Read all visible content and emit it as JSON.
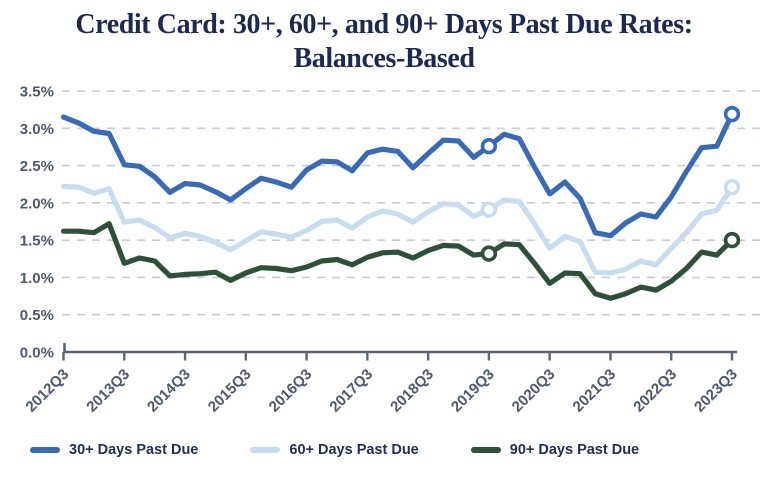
{
  "title": {
    "line1": "Credit Card: 30+, 60+, and 90+ Days Past Due Rates:",
    "line2": "Balances-Based"
  },
  "colors": {
    "series_30": "#3A6AB2",
    "series_60": "#C7DCEF",
    "series_90": "#2F5038",
    "title_text": "#1C2950",
    "tick_text": "#4E5870",
    "gridline": "#C4CBDA",
    "axis": "#5C6476",
    "marker_fill": "#FFFFFF"
  },
  "legend": {
    "items": [
      {
        "name": "legend-item-30-plus",
        "label": "30+ Days Past Due",
        "color": "#3A6AB2"
      },
      {
        "name": "legend-item-60-plus",
        "label": "60+ Days Past Due",
        "color": "#C7DCEF"
      },
      {
        "name": "legend-item-90-plus",
        "label": "90+ Days Past Due",
        "color": "#2F5038"
      }
    ]
  },
  "chart_data": {
    "type": "line",
    "title": "Credit Card: 30+, 60+, and 90+ Days Past Due Rates: Balances-Based",
    "xlabel": "",
    "ylabel": "",
    "ylim": [
      0,
      3.5
    ],
    "grid": "horizontal-dashed",
    "legend_position": "bottom",
    "x": [
      "2012Q3",
      "2012Q4",
      "2013Q1",
      "2013Q2",
      "2013Q3",
      "2013Q4",
      "2014Q1",
      "2014Q2",
      "2014Q3",
      "2014Q4",
      "2015Q1",
      "2015Q2",
      "2015Q3",
      "2015Q4",
      "2016Q1",
      "2016Q2",
      "2016Q3",
      "2016Q4",
      "2017Q1",
      "2017Q2",
      "2017Q3",
      "2017Q4",
      "2018Q1",
      "2018Q2",
      "2018Q3",
      "2018Q4",
      "2019Q1",
      "2019Q2",
      "2019Q3",
      "2019Q4",
      "2020Q1",
      "2020Q2",
      "2020Q3",
      "2020Q4",
      "2021Q1",
      "2021Q2",
      "2021Q3",
      "2021Q4",
      "2022Q1",
      "2022Q2",
      "2022Q3",
      "2022Q4",
      "2023Q1",
      "2023Q2",
      "2023Q3"
    ],
    "x_ticks": [
      {
        "index": 0,
        "label": "2012Q3"
      },
      {
        "index": 4,
        "label": "2013Q3"
      },
      {
        "index": 8,
        "label": "2014Q3"
      },
      {
        "index": 12,
        "label": "2015Q3"
      },
      {
        "index": 16,
        "label": "2016Q3"
      },
      {
        "index": 20,
        "label": "2017Q3"
      },
      {
        "index": 24,
        "label": "2018Q3"
      },
      {
        "index": 28,
        "label": "2019Q3"
      },
      {
        "index": 32,
        "label": "2020Q3"
      },
      {
        "index": 36,
        "label": "2021Q3"
      },
      {
        "index": 40,
        "label": "2022Q3"
      },
      {
        "index": 44,
        "label": "2023Q3"
      }
    ],
    "y_ticks": [
      {
        "value": 0.0,
        "label": "0.0%"
      },
      {
        "value": 0.5,
        "label": "0.5%"
      },
      {
        "value": 1.0,
        "label": "1.0%"
      },
      {
        "value": 1.5,
        "label": "1.5%"
      },
      {
        "value": 2.0,
        "label": "2.0%"
      },
      {
        "value": 2.5,
        "label": "2.5%"
      },
      {
        "value": 3.0,
        "label": "3.0%"
      },
      {
        "value": 3.5,
        "label": "3.5%"
      }
    ],
    "series": [
      {
        "name": "30+ Days Past Due",
        "color": "#3A6AB2",
        "markers": [
          28,
          44
        ],
        "values": [
          3.15,
          3.07,
          2.96,
          2.93,
          2.51,
          2.49,
          2.35,
          2.14,
          2.26,
          2.24,
          2.15,
          2.04,
          2.19,
          2.33,
          2.28,
          2.21,
          2.44,
          2.56,
          2.55,
          2.43,
          2.67,
          2.72,
          2.69,
          2.47,
          2.66,
          2.84,
          2.83,
          2.61,
          2.76,
          2.92,
          2.86,
          2.48,
          2.12,
          2.28,
          2.06,
          1.6,
          1.56,
          1.73,
          1.85,
          1.81,
          2.08,
          2.42,
          2.74,
          2.76,
          3.19
        ]
      },
      {
        "name": "60+ Days Past Due",
        "color": "#C7DCEF",
        "markers": [
          28,
          44
        ],
        "values": [
          2.22,
          2.21,
          2.13,
          2.19,
          1.74,
          1.77,
          1.67,
          1.53,
          1.59,
          1.55,
          1.47,
          1.37,
          1.49,
          1.61,
          1.58,
          1.54,
          1.63,
          1.75,
          1.77,
          1.66,
          1.81,
          1.89,
          1.85,
          1.74,
          1.88,
          1.99,
          1.97,
          1.82,
          1.91,
          2.04,
          2.02,
          1.72,
          1.39,
          1.55,
          1.48,
          1.07,
          1.06,
          1.11,
          1.22,
          1.17,
          1.39,
          1.6,
          1.85,
          1.9,
          2.21
        ]
      },
      {
        "name": "90+ Days Past Due",
        "color": "#2F5038",
        "markers": [
          28,
          44
        ],
        "values": [
          1.62,
          1.62,
          1.6,
          1.72,
          1.19,
          1.26,
          1.22,
          1.02,
          1.04,
          1.05,
          1.07,
          0.96,
          1.06,
          1.13,
          1.12,
          1.09,
          1.14,
          1.22,
          1.24,
          1.17,
          1.27,
          1.33,
          1.34,
          1.26,
          1.36,
          1.43,
          1.42,
          1.3,
          1.32,
          1.45,
          1.44,
          1.19,
          0.92,
          1.06,
          1.05,
          0.78,
          0.72,
          0.78,
          0.87,
          0.83,
          0.95,
          1.12,
          1.34,
          1.3,
          1.5
        ]
      }
    ]
  }
}
